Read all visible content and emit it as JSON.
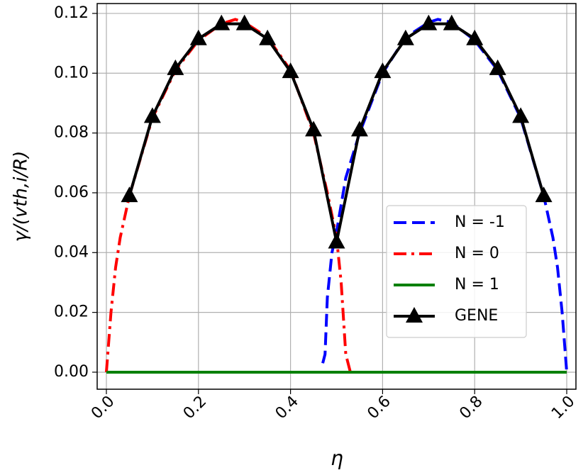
{
  "chart_data": {
    "type": "line",
    "xlabel": "η",
    "ylabel": "γ/(vth,i/R)",
    "xlim": [
      -0.02,
      1.02
    ],
    "ylim": [
      -0.0057,
      0.1233
    ],
    "xticks": [
      {
        "value": 0,
        "label": "0.0"
      },
      0.2,
      0.4,
      0.6,
      0.8,
      {
        "value": 1,
        "label": "1.0"
      }
    ],
    "yticks": [
      {
        "value": 0,
        "label": "0.00"
      },
      0.02,
      0.04,
      0.06,
      0.08,
      {
        "value": 0.1,
        "label": "0.10"
      },
      0.12
    ],
    "grid": true,
    "legend": "lower right",
    "series": [
      {
        "name": "N = -1",
        "color": "#0000ff",
        "dash": "dashed",
        "x": [
          0.47,
          0.475,
          0.48,
          0.49,
          0.5,
          0.52,
          0.55,
          0.6,
          0.65,
          0.7,
          0.72,
          0.75,
          0.8,
          0.85,
          0.9,
          0.95,
          0.97,
          0.98,
          0.99,
          1.0
        ],
        "values": [
          0.003,
          0.006,
          0.025,
          0.04,
          0.047,
          0.065,
          0.08,
          0.1,
          0.112,
          0.117,
          0.118,
          0.117,
          0.111,
          0.101,
          0.085,
          0.059,
          0.045,
          0.035,
          0.02,
          0
        ]
      },
      {
        "name": "N = 0",
        "color": "#ff0000",
        "dash": "dashdot",
        "x": [
          0,
          0.01,
          0.02,
          0.03,
          0.05,
          0.1,
          0.15,
          0.2,
          0.25,
          0.28,
          0.3,
          0.35,
          0.4,
          0.45,
          0.48,
          0.5,
          0.51,
          0.52,
          0.53
        ],
        "values": [
          0,
          0.02,
          0.035,
          0.045,
          0.059,
          0.085,
          0.101,
          0.111,
          0.1165,
          0.118,
          0.117,
          0.112,
          0.101,
          0.08,
          0.06,
          0.045,
          0.03,
          0.006,
          0
        ]
      },
      {
        "name": "N = 1",
        "color": "#008000",
        "dash": "solid",
        "x": [
          0,
          1
        ],
        "values": [
          0,
          0
        ]
      },
      {
        "name": "GENE",
        "color": "#000000",
        "dash": "solid",
        "marker": "triangle",
        "x": [
          0.05,
          0.1,
          0.15,
          0.2,
          0.25,
          0.3,
          0.35,
          0.4,
          0.45,
          0.5,
          0.55,
          0.6,
          0.65,
          0.7,
          0.75,
          0.8,
          0.85,
          0.9,
          0.95
        ],
        "values": [
          0.059,
          0.0855,
          0.1015,
          0.1115,
          0.1165,
          0.1165,
          0.1115,
          0.1005,
          0.081,
          0.0435,
          0.081,
          0.1005,
          0.1115,
          0.1165,
          0.1165,
          0.1115,
          0.1015,
          0.0855,
          0.059
        ]
      }
    ]
  }
}
